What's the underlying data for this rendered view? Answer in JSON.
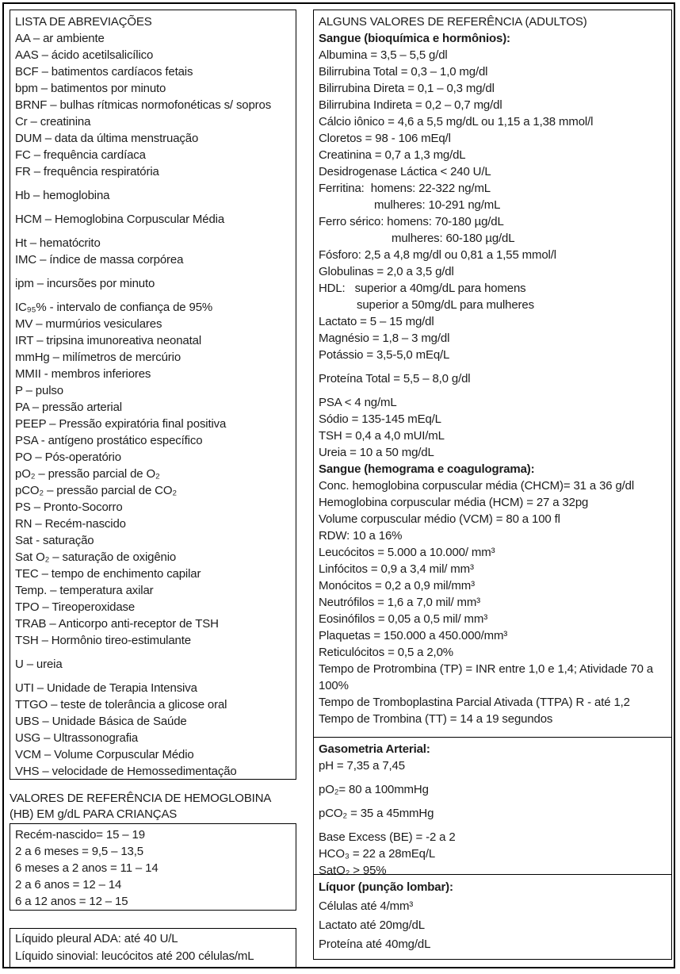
{
  "left_column": {
    "abbreviations_box": {
      "title": "LISTA DE ABREVIAÇÕES",
      "items": [
        {
          "t": "AA – ar ambiente"
        },
        {
          "t": "AAS – ácido acetilsalicílico"
        },
        {
          "t": "BCF – batimentos cardíacos fetais"
        },
        {
          "t": "bpm – batimentos por minuto"
        },
        {
          "t": "BRNF – bulhas rítmicas normofonéticas s/ sopros"
        },
        {
          "t": "Cr – creatinina"
        },
        {
          "t": "DUM – data da última menstruação"
        },
        {
          "t": "FC – frequência cardíaca"
        },
        {
          "t": "FR – frequência respiratória"
        },
        {
          "t": "Hb – hemoglobina",
          "g": true
        },
        {
          "t": "HCM – Hemoglobina Corpuscular Média",
          "g": true
        },
        {
          "t": "Ht – hematócrito",
          "g": true
        },
        {
          "t": "IMC – índice de massa corpórea"
        },
        {
          "t": "ipm – incursões por minuto",
          "g": true
        },
        {
          "t": "IC₉₅% - intervalo de confiança de 95%",
          "g": true
        },
        {
          "t": "MV – murmúrios vesiculares"
        },
        {
          "t": "IRT – tripsina imunoreativa neonatal"
        },
        {
          "t": "mmHg – milímetros de mercúrio"
        },
        {
          "t": "MMII - membros inferiores"
        },
        {
          "t": "P – pulso"
        },
        {
          "t": "PA – pressão arterial"
        },
        {
          "t": "PEEP – Pressão expiratória final positiva"
        },
        {
          "t": "PSA - antígeno prostático específico"
        },
        {
          "t": "PO – Pós-operatório"
        },
        {
          "t": "pO₂ – pressão parcial de O₂"
        },
        {
          "t": "pCO₂ – pressão parcial de CO₂"
        },
        {
          "t": "PS – Pronto-Socorro"
        },
        {
          "t": "RN – Recém-nascido"
        },
        {
          "t": "Sat - saturação"
        },
        {
          "t": "Sat O₂ – saturação de oxigênio"
        },
        {
          "t": "TEC – tempo de enchimento capilar"
        },
        {
          "t": "Temp. – temperatura axilar"
        },
        {
          "t": "TPO – Tireoperoxidase"
        },
        {
          "t": "TRAB – Anticorpo anti-receptor de TSH"
        },
        {
          "t": "TSH – Hormônio tireo-estimulante"
        },
        {
          "t": "U – ureia",
          "g": true
        },
        {
          "t": "UTI – Unidade de Terapia Intensiva",
          "g": true
        },
        {
          "t": "TTGO – teste de tolerância a glicose oral"
        },
        {
          "t": "UBS – Unidade Básica de Saúde"
        },
        {
          "t": "USG – Ultrassonografia"
        },
        {
          "t": "VCM – Volume Corpuscular Médio"
        },
        {
          "t": "VHS – velocidade de Hemossedimentação"
        }
      ]
    },
    "hb_reference": {
      "heading": "VALORES DE REFERÊNCIA DE HEMOGLOBINA (HB) EM g/dL PARA CRIANÇAS",
      "items": [
        {
          "t": "Recém-nascido= 15 – 19"
        },
        {
          "t": "2 a 6 meses = 9,5 – 13,5"
        },
        {
          "t": "6 meses a 2 anos = 11 – 14"
        },
        {
          "t": "2 a 6 anos = 12 – 14"
        },
        {
          "t": "6 a 12 anos = 12 – 15"
        }
      ]
    },
    "fluids_box": {
      "items": [
        {
          "t": "Líquido pleural ADA: até 40 U/L"
        },
        {
          "t": "Líquido sinovial: leucócitos até 200 células/mL"
        }
      ]
    }
  },
  "right_column": {
    "title": "ALGUNS VALORES DE REFERÊNCIA (ADULTOS)",
    "blood_section": {
      "items": [
        {
          "t": "Sangue (bioquímica e hormônios):",
          "b": true
        },
        {
          "t": "Albumina = 3,5 – 5,5 g/dl"
        },
        {
          "t": "Bilirrubina Total = 0,3 – 1,0 mg/dl"
        },
        {
          "t": "Bilirrubina Direta = 0,1 – 0,3 mg/dl"
        },
        {
          "t": "Bilirrubina Indireta = 0,2 – 0,7 mg/dl"
        },
        {
          "t": "Cálcio iônico = 4,6 a 5,5 mg/dL ou 1,15 a 1,38 mmol/l"
        },
        {
          "t": "Cloretos = 98 - 106 mEq/l"
        },
        {
          "t": "Creatinina = 0,7 a 1,3 mg/dL"
        },
        {
          "t": "Desidrogenase Láctica < 240 U/L"
        },
        {
          "t": "Ferritina:  homens: 22-322 ng/mL"
        },
        {
          "t": "mulheres: 10-291 ng/mL",
          "ind": 70
        },
        {
          "t": "Ferro sérico: homens: 70-180 µg/dL"
        },
        {
          "t": "mulheres: 60-180 µg/dL",
          "ind": 92
        },
        {
          "t": "Fósforo: 2,5 a 4,8 mg/dl ou 0,81 a 1,55 mmol/l"
        },
        {
          "t": "Globulinas = 2,0 a 3,5 g/dl"
        },
        {
          "t": "HDL:   superior a 40mg/dL para homens"
        },
        {
          "t": "superior a 50mg/dL para mulheres",
          "ind": 48
        },
        {
          "t": "Lactato = 5 – 15 mg/dl"
        },
        {
          "t": "Magnésio = 1,8 – 3 mg/dl"
        },
        {
          "t": "Potássio = 3,5-5,0 mEq/L"
        },
        {
          "t": "Proteína Total = 5,5 – 8,0 g/dl",
          "g": true
        },
        {
          "t": "PSA < 4 ng/mL",
          "g": true
        },
        {
          "t": "Sódio = 135-145 mEq/L"
        },
        {
          "t": "TSH = 0,4 a 4,0 mUI/mL"
        },
        {
          "t": "Ureia = 10 a 50 mg/dL"
        },
        {
          "t": "Sangue (hemograma e coagulograma):",
          "b": true
        },
        {
          "t": "Conc. hemoglobina corpuscular média (CHCM)= 31 a 36 g/dl"
        },
        {
          "t": "Hemoglobina corpuscular média (HCM) = 27 a 32pg"
        },
        {
          "t": "Volume corpuscular médio (VCM) = 80 a 100 fl"
        },
        {
          "t": "RDW: 10 a 16%"
        },
        {
          "t": "Leucócitos = 5.000 a 10.000/ mm³"
        },
        {
          "t": "Linfócitos = 0,9 a 3,4 mil/ mm³"
        },
        {
          "t": "Monócitos = 0,2 a 0,9 mil/mm³"
        },
        {
          "t": "Neutrófilos = 1,6 a 7,0 mil/ mm³"
        },
        {
          "t": "Eosinófilos = 0,05 a 0,5 mil/ mm³"
        },
        {
          "t": "Plaquetas = 150.000 a 450.000/mm³"
        },
        {
          "t": "Reticulócitos = 0,5 a 2,0%"
        },
        {
          "t": "Tempo de Protrombina (TP) = INR entre 1,0 e 1,4; Atividade 70 a 100%"
        },
        {
          "t": "Tempo de Tromboplastina Parcial Ativada (TTPA) R - até 1,2"
        },
        {
          "t": "Tempo de Trombina (TT) = 14 a 19 segundos"
        }
      ]
    },
    "gasometry_section": {
      "title": "Gasometria Arterial:",
      "items": [
        {
          "t": "pH = 7,35 a 7,45"
        },
        {
          "t": "pO₂= 80 a 100mmHg",
          "g": true
        },
        {
          "t": "pCO₂ = 35 a 45mmHg",
          "g": true
        },
        {
          "t": "Base Excess (BE) = -2 a 2",
          "g": true
        },
        {
          "t": "HCO₃ = 22 a 28mEq/L"
        },
        {
          "t": "SatO₂ > 95%"
        }
      ]
    },
    "csf_section": {
      "title": "Líquor (punção lombar):",
      "items": [
        {
          "t": "Células até 4/mm³"
        },
        {
          "t": "Lactato até 20mg/dL"
        },
        {
          "t": "Proteína até 40mg/dL"
        }
      ]
    }
  }
}
